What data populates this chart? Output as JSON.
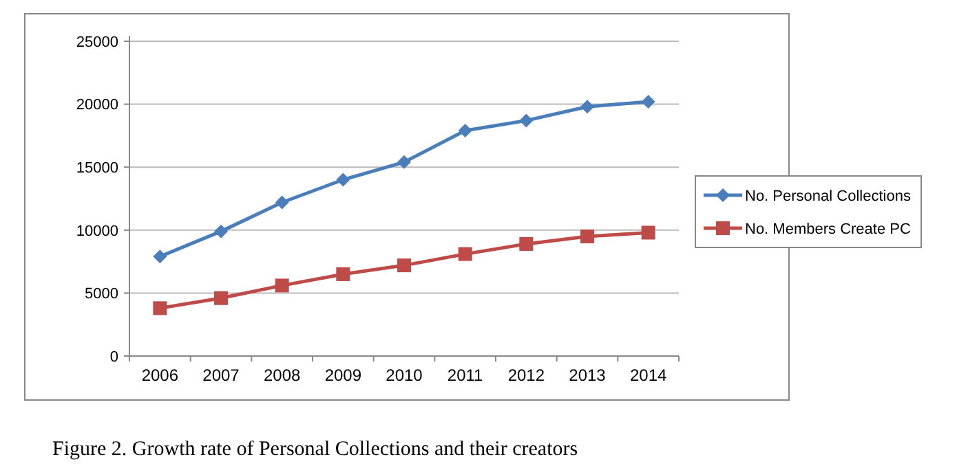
{
  "chart_data": {
    "type": "line",
    "categories": [
      "2006",
      "2007",
      "2008",
      "2009",
      "2010",
      "2011",
      "2012",
      "2013",
      "2014"
    ],
    "series": [
      {
        "name": "No. Personal Collections",
        "color": "#4a7ebb",
        "values": [
          7900,
          9900,
          12200,
          14000,
          15400,
          17900,
          18700,
          19800,
          20200
        ],
        "marker": "diamond"
      },
      {
        "name": "No. Members Create PC",
        "color": "#be4b48",
        "values": [
          3800,
          4600,
          5600,
          6500,
          7200,
          8100,
          8900,
          9500,
          9800
        ],
        "marker": "square"
      }
    ],
    "ylim": [
      0,
      25000
    ],
    "yticks": [
      0,
      5000,
      10000,
      15000,
      20000,
      25000
    ],
    "grid": "y",
    "legend": "right",
    "annotations": [
      "Figure 2. Growth rate of Personal Collections and their creators"
    ]
  }
}
